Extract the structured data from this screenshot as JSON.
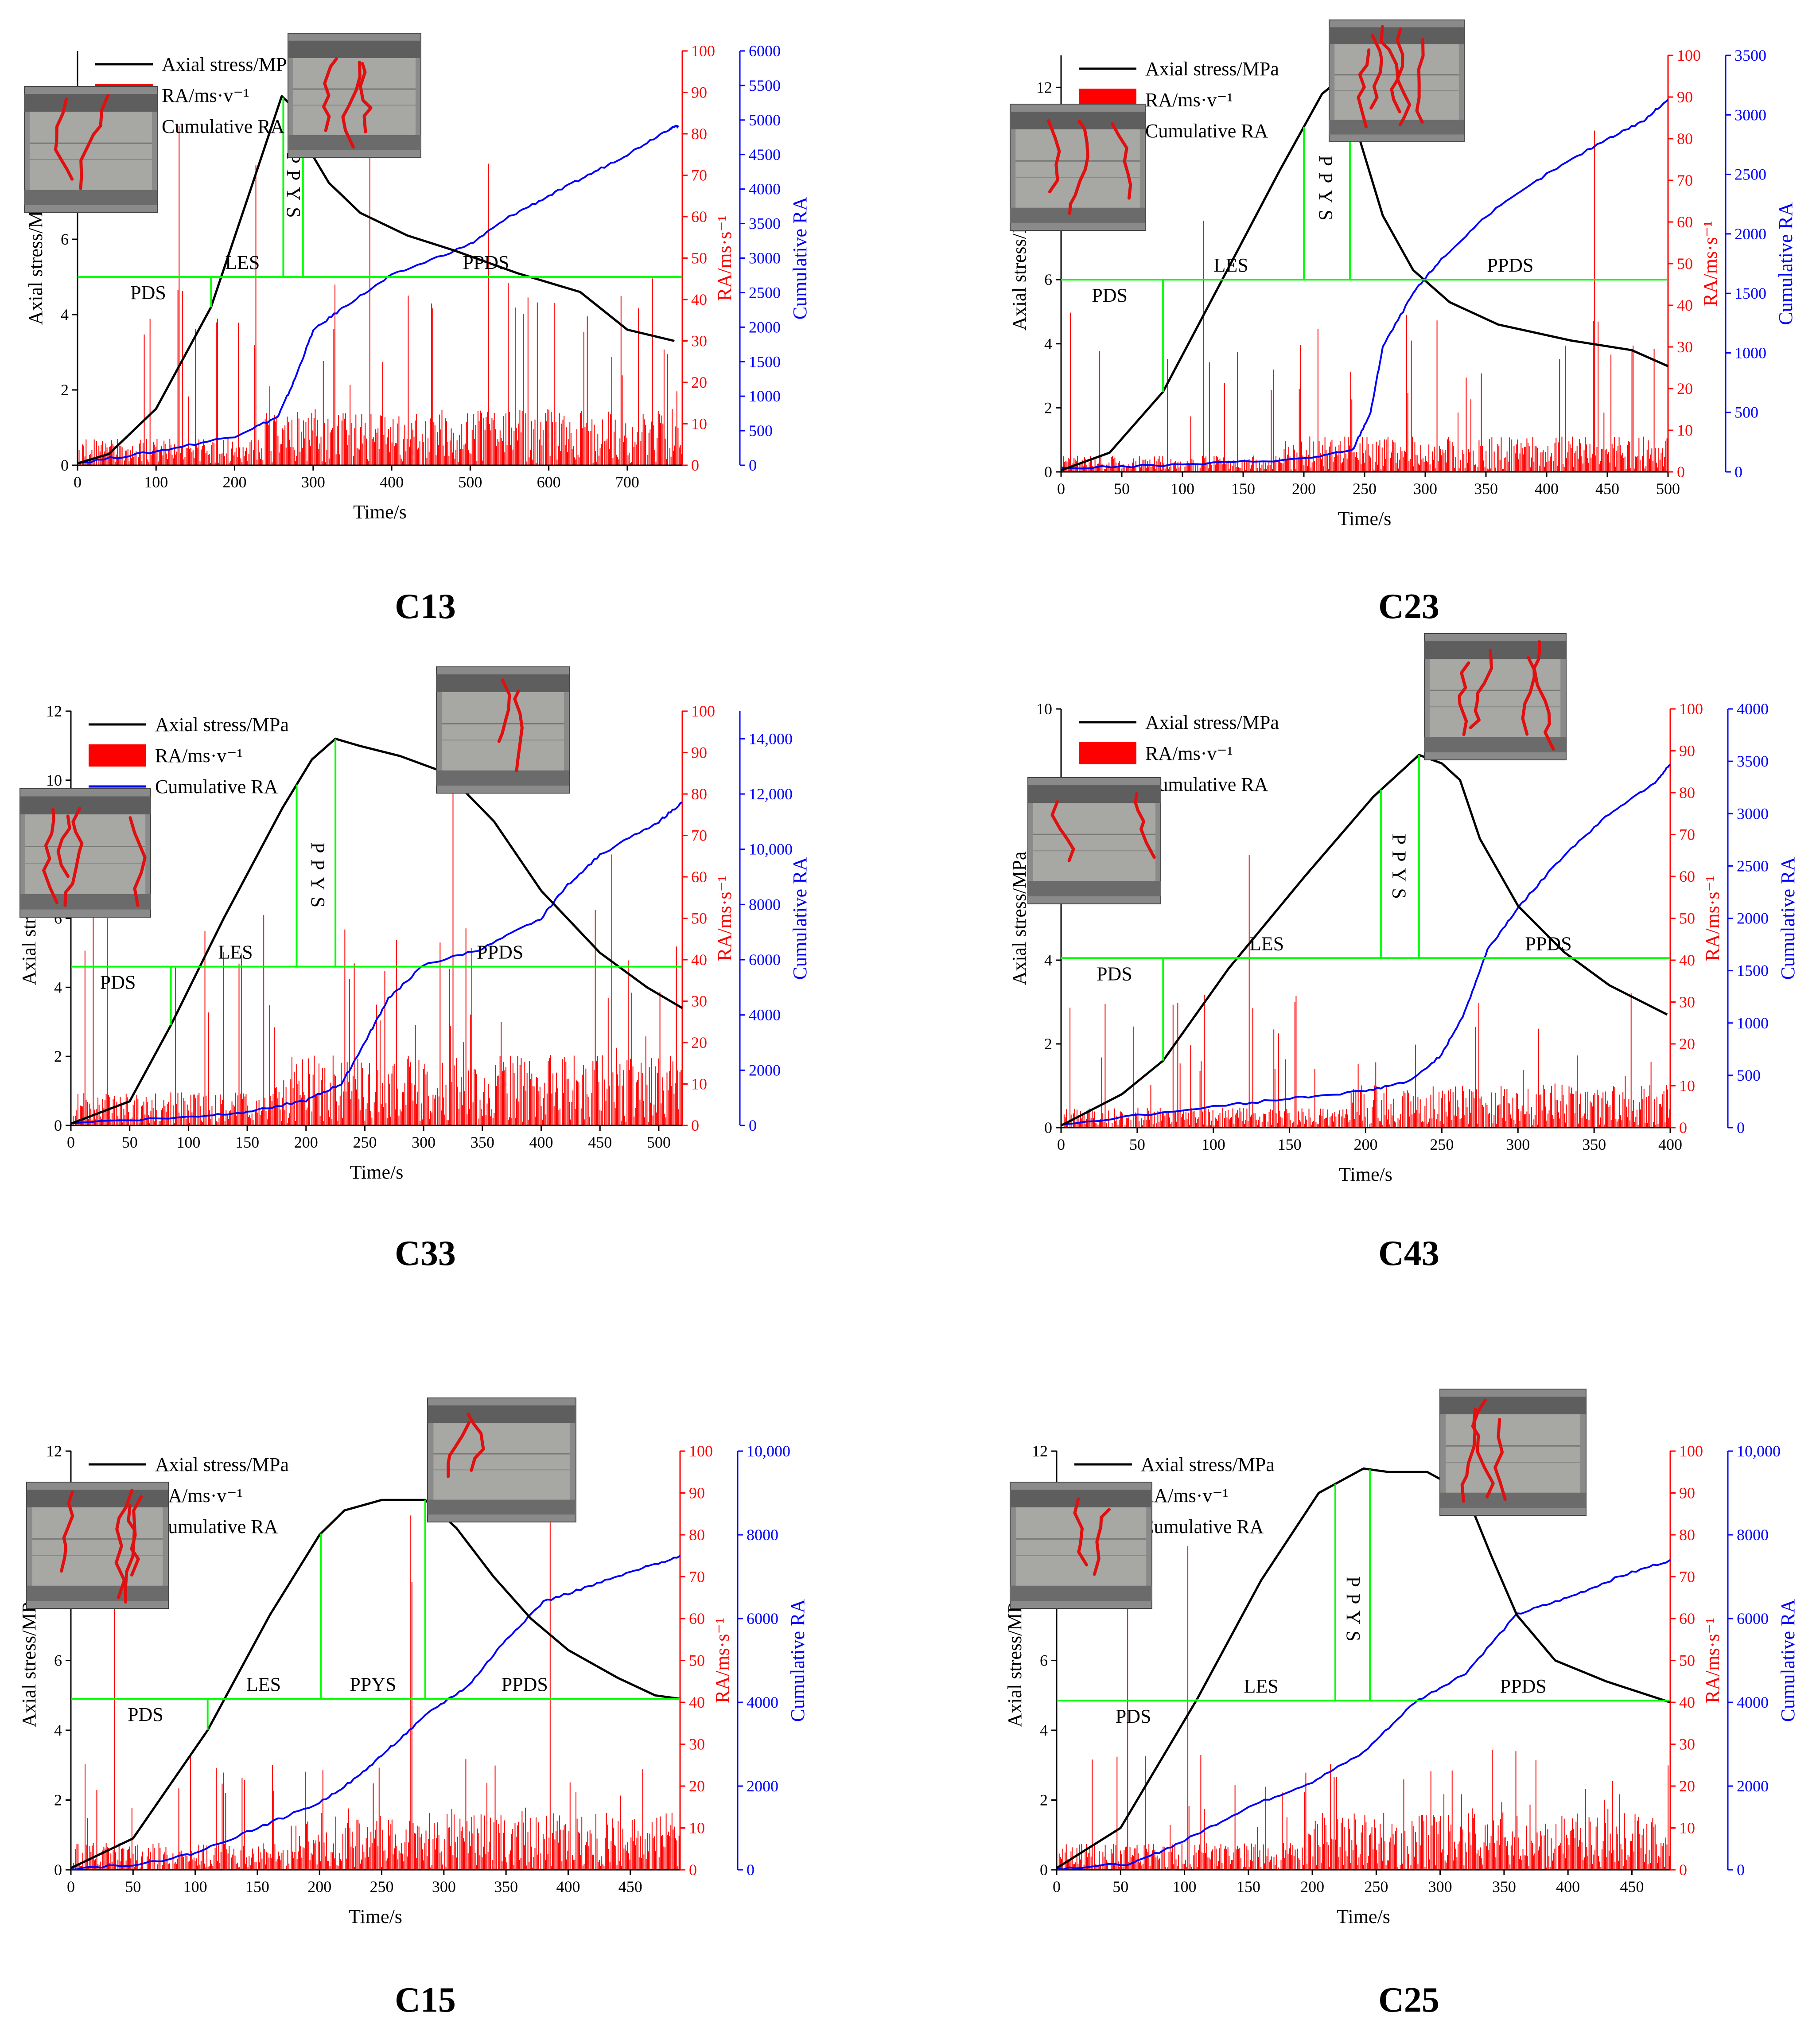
{
  "legend": {
    "stress": "Axial stress/MPa",
    "ra": "RA/ms·v⁻¹",
    "cum": "Cumulative RA"
  },
  "axes": {
    "xlabel": "Time/s",
    "ylabel_left": "Axial stress/MPa",
    "ylabel_ra": "RA/ms·s⁻¹",
    "ylabel_cum": "Cumulative RA"
  },
  "colors": {
    "stress": "#000000",
    "ra": "#ff0000",
    "cum": "#0000ff",
    "stage": "#00ff00"
  },
  "chart_data": [
    {
      "id": "C13",
      "type": "line",
      "caption": "C13",
      "xlim": [
        0,
        770
      ],
      "xticks": [
        0,
        100,
        200,
        300,
        400,
        500,
        600,
        700
      ],
      "ylim": [
        0,
        11
      ],
      "yticks": [
        0,
        2,
        4,
        6
      ],
      "ralim": [
        0,
        100
      ],
      "raticks": [
        0,
        10,
        20,
        30,
        40,
        50,
        60,
        70,
        80,
        90,
        100
      ],
      "cumlim": [
        0,
        6000
      ],
      "cumticks": [
        0,
        500,
        1000,
        1500,
        2000,
        2500,
        3000,
        3500,
        4000,
        4500,
        5000,
        5500,
        6000
      ],
      "stress": [
        [
          0,
          0.05
        ],
        [
          40,
          0.3
        ],
        [
          100,
          1.5
        ],
        [
          170,
          4.2
        ],
        [
          220,
          7.3
        ],
        [
          260,
          9.8
        ],
        [
          275,
          9.5
        ],
        [
          300,
          8.2
        ],
        [
          320,
          7.5
        ],
        [
          360,
          6.7
        ],
        [
          420,
          6.1
        ],
        [
          480,
          5.7
        ],
        [
          560,
          5.1
        ],
        [
          640,
          4.6
        ],
        [
          700,
          3.6
        ],
        [
          760,
          3.3
        ]
      ],
      "cumulative": [
        [
          0,
          30
        ],
        [
          100,
          200
        ],
        [
          200,
          420
        ],
        [
          255,
          700
        ],
        [
          275,
          1200
        ],
        [
          300,
          1950
        ],
        [
          340,
          2300
        ],
        [
          400,
          2750
        ],
        [
          500,
          3200
        ],
        [
          550,
          3600
        ],
        [
          600,
          3900
        ],
        [
          650,
          4200
        ],
        [
          700,
          4500
        ],
        [
          750,
          4850
        ],
        [
          765,
          4920
        ]
      ],
      "ra_seed": 13,
      "ra_base": 8,
      "ra_peak": 35,
      "stage_line_y": 5.0,
      "stage_dividers": [
        [
          170,
          0,
          "h"
        ],
        [
          262,
          0,
          "top"
        ],
        [
          287,
          0,
          "top"
        ]
      ],
      "stage_labels": [
        "PDS",
        "LES",
        "PPYS",
        "PPDS"
      ],
      "label_x": [
        90,
        210,
        275,
        520
      ],
      "vertical_ppys": true,
      "photos": [
        {
          "pos": "left"
        },
        {
          "pos": "top"
        }
      ]
    },
    {
      "id": "C23",
      "type": "line",
      "caption": "C23",
      "xlim": [
        0,
        500
      ],
      "xticks": [
        0,
        50,
        100,
        150,
        200,
        250,
        300,
        350,
        400,
        450,
        500
      ],
      "ylim": [
        0,
        13
      ],
      "yticks": [
        0,
        2,
        4,
        6,
        8,
        10,
        12
      ],
      "ralim": [
        0,
        100
      ],
      "raticks": [
        0,
        10,
        20,
        30,
        40,
        50,
        60,
        70,
        80,
        90,
        100
      ],
      "cumlim": [
        0,
        3500
      ],
      "cumticks": [
        0,
        500,
        1000,
        1500,
        2000,
        2500,
        3000,
        3500
      ],
      "stress": [
        [
          0,
          0.05
        ],
        [
          40,
          0.6
        ],
        [
          84,
          2.5
        ],
        [
          130,
          5.8
        ],
        [
          180,
          9.4
        ],
        [
          215,
          11.8
        ],
        [
          228,
          12.2
        ],
        [
          245,
          10.5
        ],
        [
          265,
          8.0
        ],
        [
          290,
          6.3
        ],
        [
          320,
          5.3
        ],
        [
          360,
          4.6
        ],
        [
          420,
          4.1
        ],
        [
          470,
          3.8
        ],
        [
          500,
          3.3
        ]
      ],
      "cumulative": [
        [
          0,
          30
        ],
        [
          100,
          60
        ],
        [
          200,
          110
        ],
        [
          240,
          180
        ],
        [
          255,
          500
        ],
        [
          265,
          1050
        ],
        [
          290,
          1500
        ],
        [
          310,
          1750
        ],
        [
          350,
          2150
        ],
        [
          400,
          2500
        ],
        [
          450,
          2800
        ],
        [
          480,
          2950
        ],
        [
          500,
          3130
        ]
      ],
      "ra_seed": 23,
      "ra_base": 5,
      "ra_peak": 30,
      "stage_line_y": 6.0,
      "stage_dividers": [
        [
          84,
          0,
          "h"
        ],
        [
          200,
          0,
          "top"
        ],
        [
          238,
          0,
          "top"
        ]
      ],
      "stage_labels": [
        "PDS",
        "LES",
        "PPYS",
        "PPDS"
      ],
      "label_x": [
        40,
        140,
        218,
        370
      ],
      "vertical_ppys": true,
      "photos": [
        {
          "pos": "left"
        },
        {
          "pos": "top"
        }
      ]
    },
    {
      "id": "C33",
      "type": "line",
      "caption": "C33",
      "xlim": [
        0,
        520
      ],
      "xticks": [
        0,
        50,
        100,
        150,
        200,
        250,
        300,
        350,
        400,
        450,
        500
      ],
      "ylim": [
        0,
        12
      ],
      "yticks": [
        0,
        2,
        4,
        6,
        8,
        10,
        12
      ],
      "ralim": [
        0,
        100
      ],
      "raticks": [
        0,
        10,
        20,
        30,
        40,
        50,
        60,
        70,
        80,
        90,
        100
      ],
      "cumlim": [
        0,
        15000
      ],
      "cumticks": [
        0,
        2000,
        4000,
        6000,
        8000,
        10000,
        12000,
        14000
      ],
      "stress": [
        [
          0,
          0.05
        ],
        [
          50,
          0.7
        ],
        [
          85,
          2.9
        ],
        [
          130,
          6.0
        ],
        [
          180,
          9.2
        ],
        [
          205,
          10.6
        ],
        [
          225,
          11.2
        ],
        [
          245,
          11.0
        ],
        [
          280,
          10.7
        ],
        [
          320,
          10.2
        ],
        [
          360,
          8.8
        ],
        [
          400,
          6.8
        ],
        [
          450,
          5.0
        ],
        [
          490,
          4.0
        ],
        [
          520,
          3.4
        ]
      ],
      "cumulative": [
        [
          0,
          100
        ],
        [
          100,
          300
        ],
        [
          150,
          500
        ],
        [
          200,
          900
        ],
        [
          230,
          1500
        ],
        [
          250,
          3000
        ],
        [
          270,
          4600
        ],
        [
          300,
          5800
        ],
        [
          350,
          6400
        ],
        [
          400,
          7500
        ],
        [
          420,
          8600
        ],
        [
          450,
          9800
        ],
        [
          500,
          11000
        ],
        [
          520,
          11700
        ]
      ],
      "ra_seed": 33,
      "ra_base": 10,
      "ra_peak": 40,
      "stage_line_y": 4.6,
      "stage_dividers": [
        [
          85,
          0,
          "h"
        ],
        [
          192,
          0,
          "top"
        ],
        [
          225,
          0,
          "top"
        ]
      ],
      "stage_labels": [
        "PDS",
        "LES",
        "PPYS",
        "PPDS"
      ],
      "label_x": [
        40,
        140,
        210,
        365
      ],
      "vertical_ppys": true,
      "photos": [
        {
          "pos": "left"
        },
        {
          "pos": "top"
        }
      ]
    },
    {
      "id": "C43",
      "type": "line",
      "caption": "C43",
      "xlim": [
        0,
        400
      ],
      "xticks": [
        0,
        50,
        100,
        150,
        200,
        250,
        300,
        350,
        400
      ],
      "ylim": [
        0,
        10
      ],
      "yticks": [
        0,
        2,
        4,
        6,
        8,
        10
      ],
      "ralim": [
        0,
        100
      ],
      "raticks": [
        0,
        10,
        20,
        30,
        40,
        50,
        60,
        70,
        80,
        90,
        100
      ],
      "cumlim": [
        0,
        4000
      ],
      "cumticks": [
        0,
        500,
        1000,
        1500,
        2000,
        2500,
        3000,
        3500,
        4000
      ],
      "stress": [
        [
          0,
          0.05
        ],
        [
          40,
          0.8
        ],
        [
          67,
          1.6
        ],
        [
          110,
          3.8
        ],
        [
          160,
          6.0
        ],
        [
          205,
          7.9
        ],
        [
          235,
          8.9
        ],
        [
          250,
          8.7
        ],
        [
          262,
          8.3
        ],
        [
          275,
          6.9
        ],
        [
          300,
          5.3
        ],
        [
          330,
          4.2
        ],
        [
          360,
          3.4
        ],
        [
          398,
          2.7
        ]
      ],
      "cumulative": [
        [
          0,
          30
        ],
        [
          100,
          200
        ],
        [
          150,
          280
        ],
        [
          200,
          350
        ],
        [
          230,
          450
        ],
        [
          250,
          700
        ],
        [
          265,
          1100
        ],
        [
          280,
          1700
        ],
        [
          300,
          2100
        ],
        [
          330,
          2600
        ],
        [
          360,
          3000
        ],
        [
          390,
          3300
        ],
        [
          400,
          3470
        ]
      ],
      "ra_seed": 43,
      "ra_base": 6,
      "ra_peak": 25,
      "stage_line_y": 4.05,
      "stage_dividers": [
        [
          67,
          0,
          "h"
        ],
        [
          210,
          0,
          "top"
        ],
        [
          235,
          0,
          "top"
        ]
      ],
      "stage_labels": [
        "PDS",
        "LES",
        "PPYS",
        "PPDS"
      ],
      "label_x": [
        35,
        135,
        222,
        320
      ],
      "vertical_ppys": true,
      "photos": [
        {
          "pos": "left"
        },
        {
          "pos": "top"
        }
      ]
    },
    {
      "id": "C15",
      "type": "line",
      "caption": "C15",
      "xlim": [
        0,
        490
      ],
      "xticks": [
        0,
        50,
        100,
        150,
        200,
        250,
        300,
        350,
        400,
        450
      ],
      "ylim": [
        0,
        12
      ],
      "yticks": [
        0,
        2,
        4,
        6,
        8,
        10,
        12
      ],
      "ralim": [
        0,
        100
      ],
      "raticks": [
        0,
        10,
        20,
        30,
        40,
        50,
        60,
        70,
        80,
        90,
        100
      ],
      "cumlim": [
        0,
        10000
      ],
      "cumticks": [
        0,
        2000,
        4000,
        6000,
        8000,
        10000
      ],
      "stress": [
        [
          0,
          0.05
        ],
        [
          50,
          0.9
        ],
        [
          110,
          4.0
        ],
        [
          160,
          7.3
        ],
        [
          200,
          9.6
        ],
        [
          220,
          10.3
        ],
        [
          250,
          10.6
        ],
        [
          285,
          10.6
        ],
        [
          310,
          9.8
        ],
        [
          340,
          8.4
        ],
        [
          370,
          7.2
        ],
        [
          400,
          6.3
        ],
        [
          440,
          5.5
        ],
        [
          470,
          5.0
        ],
        [
          490,
          4.9
        ]
      ],
      "cumulative": [
        [
          0,
          30
        ],
        [
          60,
          150
        ],
        [
          100,
          400
        ],
        [
          150,
          1000
        ],
        [
          200,
          1600
        ],
        [
          230,
          2200
        ],
        [
          260,
          3000
        ],
        [
          290,
          3800
        ],
        [
          320,
          4400
        ],
        [
          350,
          5500
        ],
        [
          380,
          6400
        ],
        [
          420,
          6800
        ],
        [
          460,
          7200
        ],
        [
          490,
          7500
        ]
      ],
      "ra_seed": 15,
      "ra_base": 8,
      "ra_peak": 22,
      "stage_line_y": 4.9,
      "stage_dividers": [
        [
          110,
          0,
          "h"
        ],
        [
          201,
          0,
          "top"
        ],
        [
          285,
          0,
          "top"
        ]
      ],
      "stage_labels": [
        "PDS",
        "LES",
        "PPYS",
        "PPDS"
      ],
      "label_x": [
        60,
        155,
        243,
        365
      ],
      "vertical_ppys": false,
      "photos": [
        {
          "pos": "left"
        },
        {
          "pos": "top"
        }
      ]
    },
    {
      "id": "C25",
      "type": "line",
      "caption": "C25",
      "xlim": [
        0,
        480
      ],
      "xticks": [
        0,
        50,
        100,
        150,
        200,
        250,
        300,
        350,
        400,
        450
      ],
      "ylim": [
        0,
        12
      ],
      "yticks": [
        0,
        2,
        4,
        6,
        8,
        10,
        12
      ],
      "ralim": [
        0,
        100
      ],
      "raticks": [
        0,
        10,
        20,
        30,
        40,
        50,
        60,
        70,
        80,
        90,
        100
      ],
      "cumlim": [
        0,
        10000
      ],
      "cumticks": [
        0,
        2000,
        4000,
        6000,
        8000,
        10000
      ],
      "stress": [
        [
          0,
          0.05
        ],
        [
          50,
          1.2
        ],
        [
          110,
          4.9
        ],
        [
          160,
          8.3
        ],
        [
          205,
          10.8
        ],
        [
          240,
          11.5
        ],
        [
          260,
          11.4
        ],
        [
          290,
          11.4
        ],
        [
          320,
          10.8
        ],
        [
          340,
          9.0
        ],
        [
          360,
          7.3
        ],
        [
          390,
          6.0
        ],
        [
          430,
          5.4
        ],
        [
          480,
          4.8
        ]
      ],
      "cumulative": [
        [
          0,
          30
        ],
        [
          60,
          150
        ],
        [
          100,
          700
        ],
        [
          150,
          1500
        ],
        [
          200,
          2100
        ],
        [
          240,
          2800
        ],
        [
          280,
          4000
        ],
        [
          320,
          4700
        ],
        [
          360,
          6100
        ],
        [
          400,
          6500
        ],
        [
          440,
          7000
        ],
        [
          480,
          7400
        ]
      ],
      "ra_seed": 25,
      "ra_base": 8,
      "ra_peak": 22,
      "stage_line_y": 4.85,
      "stage_dividers": [
        [
          110,
          0,
          "h"
        ],
        [
          218,
          0,
          "top"
        ],
        [
          245,
          0,
          "top"
        ]
      ],
      "stage_labels": [
        "PDS",
        "LES",
        "PPYS",
        "PPDS"
      ],
      "label_x": [
        60,
        160,
        232,
        365
      ],
      "vertical_ppys": true,
      "photos": [
        {
          "pos": "left"
        },
        {
          "pos": "top"
        }
      ]
    }
  ]
}
